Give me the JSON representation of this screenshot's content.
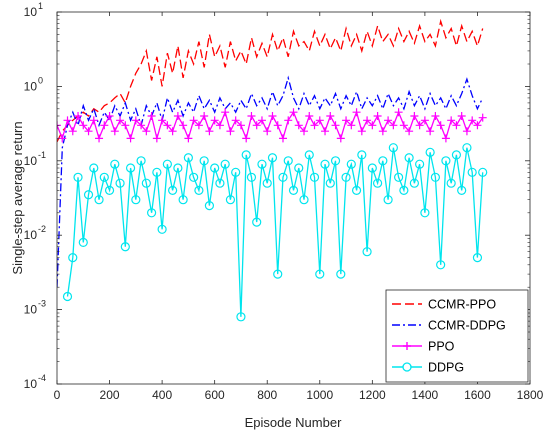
{
  "chart_data": {
    "type": "line",
    "title": "",
    "xlabel": "Episode Number",
    "ylabel": "Single-step average return",
    "xlim": [
      0,
      1800
    ],
    "ylim": [
      0.0001,
      10
    ],
    "y_scale": "log",
    "x_ticks": [
      "0",
      "200",
      "400",
      "600",
      "800",
      "1000",
      "1200",
      "1400",
      "1600",
      "1800"
    ],
    "y_ticks": [
      {
        "base": "10",
        "exp": "-4"
      },
      {
        "base": "10",
        "exp": "-3"
      },
      {
        "base": "10",
        "exp": "-2"
      },
      {
        "base": "10",
        "exp": "-1"
      },
      {
        "base": "10",
        "exp": "0"
      },
      {
        "base": "10",
        "exp": "1"
      }
    ],
    "grid": false,
    "legend_position": "bottom-right",
    "series": [
      {
        "name": "CCMR-PPO",
        "color": "#ff0000",
        "line_style": "dashed",
        "marker": "none",
        "x": [
          0,
          20,
          40,
          60,
          80,
          100,
          120,
          140,
          160,
          180,
          200,
          220,
          240,
          260,
          280,
          300,
          320,
          340,
          360,
          380,
          400,
          420,
          440,
          460,
          480,
          500,
          520,
          540,
          560,
          580,
          600,
          620,
          640,
          660,
          680,
          700,
          720,
          740,
          760,
          780,
          800,
          820,
          840,
          860,
          880,
          900,
          920,
          940,
          960,
          980,
          1000,
          1020,
          1040,
          1060,
          1080,
          1100,
          1120,
          1140,
          1160,
          1180,
          1200,
          1220,
          1240,
          1260,
          1280,
          1300,
          1320,
          1340,
          1360,
          1380,
          1400,
          1420,
          1440,
          1460,
          1480,
          1500,
          1520,
          1540,
          1560,
          1580,
          1600,
          1620
        ],
        "y": [
          0.18,
          0.25,
          0.3,
          0.35,
          0.4,
          0.45,
          0.4,
          0.5,
          0.45,
          0.55,
          0.6,
          0.7,
          0.8,
          0.6,
          1.0,
          1.5,
          2.0,
          3.0,
          1.2,
          2.5,
          1.0,
          2.8,
          1.5,
          3.5,
          1.3,
          3.0,
          2.0,
          4.0,
          1.8,
          5.0,
          2.5,
          3.5,
          1.8,
          4.0,
          2.2,
          3.0,
          2.0,
          4.5,
          2.5,
          3.8,
          2.5,
          5.0,
          3.0,
          4.5,
          2.5,
          5.5,
          3.5,
          4.0,
          3.0,
          5.5,
          3.5,
          5.0,
          3.2,
          4.5,
          3.0,
          6.0,
          3.5,
          5.0,
          3.0,
          5.5,
          3.5,
          6.5,
          4.0,
          5.0,
          3.5,
          6.0,
          4.0,
          5.5,
          3.8,
          6.5,
          4.0,
          5.0,
          3.5,
          7.5,
          4.5,
          6.0,
          3.5,
          6.5,
          4.0,
          5.5,
          3.5,
          6.0
        ]
      },
      {
        "name": "CCMR-DDPG",
        "color": "#0000ff",
        "line_style": "dashdot",
        "marker": "none",
        "x": [
          0,
          20,
          40,
          60,
          80,
          100,
          120,
          140,
          160,
          180,
          200,
          220,
          240,
          260,
          280,
          300,
          320,
          340,
          360,
          380,
          400,
          420,
          440,
          460,
          480,
          500,
          520,
          540,
          560,
          580,
          600,
          620,
          640,
          660,
          680,
          700,
          720,
          740,
          760,
          780,
          800,
          820,
          840,
          860,
          880,
          900,
          920,
          940,
          960,
          980,
          1000,
          1020,
          1040,
          1060,
          1080,
          1100,
          1120,
          1140,
          1160,
          1180,
          1200,
          1220,
          1240,
          1260,
          1280,
          1300,
          1320,
          1340,
          1360,
          1380,
          1400,
          1420,
          1440,
          1460,
          1480,
          1500,
          1520,
          1540,
          1560,
          1580,
          1600,
          1620
        ],
        "y": [
          0.002,
          0.15,
          0.3,
          0.45,
          0.3,
          0.55,
          0.35,
          0.5,
          0.3,
          0.45,
          0.35,
          0.55,
          0.4,
          0.6,
          0.35,
          0.5,
          0.3,
          0.55,
          0.4,
          0.6,
          0.35,
          0.7,
          0.45,
          0.65,
          0.4,
          0.6,
          0.45,
          0.75,
          0.5,
          0.65,
          0.45,
          0.7,
          0.5,
          0.6,
          0.45,
          0.65,
          0.5,
          0.8,
          0.55,
          0.7,
          0.5,
          0.85,
          0.55,
          0.75,
          1.3,
          0.7,
          0.5,
          0.8,
          0.55,
          0.75,
          0.5,
          0.7,
          0.55,
          0.8,
          0.5,
          0.75,
          0.55,
          0.85,
          0.5,
          0.7,
          0.55,
          0.75,
          0.5,
          0.8,
          0.55,
          0.7,
          0.5,
          0.85,
          0.55,
          0.75,
          0.5,
          0.8,
          0.55,
          0.7,
          0.5,
          0.75,
          0.55,
          0.8,
          1.25,
          0.75,
          0.5,
          0.7
        ]
      },
      {
        "name": "PPO",
        "color": "#ff00ff",
        "line_style": "solid",
        "marker": "plus",
        "x": [
          0,
          20,
          40,
          60,
          80,
          100,
          120,
          140,
          160,
          180,
          200,
          220,
          240,
          260,
          280,
          300,
          320,
          340,
          360,
          380,
          400,
          420,
          440,
          460,
          480,
          500,
          520,
          540,
          560,
          580,
          600,
          620,
          640,
          660,
          680,
          700,
          720,
          740,
          760,
          780,
          800,
          820,
          840,
          860,
          880,
          900,
          920,
          940,
          960,
          980,
          1000,
          1020,
          1040,
          1060,
          1080,
          1100,
          1120,
          1140,
          1160,
          1180,
          1200,
          1220,
          1240,
          1260,
          1280,
          1300,
          1320,
          1340,
          1360,
          1380,
          1400,
          1420,
          1440,
          1460,
          1480,
          1500,
          1520,
          1540,
          1560,
          1580,
          1600,
          1620
        ],
        "y": [
          0.3,
          0.2,
          0.35,
          0.25,
          0.4,
          0.3,
          0.25,
          0.35,
          0.2,
          0.3,
          0.4,
          0.25,
          0.35,
          0.3,
          0.2,
          0.35,
          0.3,
          0.25,
          0.4,
          0.2,
          0.35,
          0.3,
          0.25,
          0.4,
          0.3,
          0.2,
          0.35,
          0.3,
          0.4,
          0.25,
          0.35,
          0.3,
          0.45,
          0.25,
          0.35,
          0.3,
          0.2,
          0.4,
          0.3,
          0.35,
          0.25,
          0.4,
          0.3,
          0.2,
          0.35,
          0.45,
          0.3,
          0.25,
          0.4,
          0.3,
          0.35,
          0.25,
          0.4,
          0.3,
          0.2,
          0.35,
          0.3,
          0.45,
          0.25,
          0.35,
          0.3,
          0.4,
          0.25,
          0.35,
          0.3,
          0.45,
          0.3,
          0.25,
          0.4,
          0.3,
          0.35,
          0.25,
          0.4,
          0.3,
          0.2,
          0.35,
          0.3,
          0.4,
          0.25,
          0.35,
          0.3,
          0.38
        ]
      },
      {
        "name": "DDPG",
        "color": "#00e5ee",
        "line_style": "solid",
        "marker": "circle",
        "x": [
          40,
          60,
          80,
          100,
          120,
          140,
          160,
          180,
          200,
          220,
          240,
          260,
          280,
          300,
          320,
          340,
          360,
          380,
          400,
          420,
          440,
          460,
          480,
          500,
          520,
          540,
          560,
          580,
          600,
          620,
          640,
          660,
          680,
          700,
          720,
          740,
          760,
          780,
          800,
          820,
          840,
          860,
          880,
          900,
          920,
          940,
          960,
          980,
          1000,
          1020,
          1040,
          1060,
          1080,
          1100,
          1120,
          1140,
          1160,
          1180,
          1200,
          1220,
          1240,
          1260,
          1280,
          1300,
          1320,
          1340,
          1360,
          1380,
          1400,
          1420,
          1440,
          1460,
          1480,
          1500,
          1520,
          1540,
          1560,
          1580,
          1600,
          1620
        ],
        "y": [
          0.0015,
          0.005,
          0.06,
          0.008,
          0.035,
          0.08,
          0.03,
          0.06,
          0.04,
          0.09,
          0.05,
          0.007,
          0.08,
          0.03,
          0.1,
          0.05,
          0.02,
          0.07,
          0.012,
          0.09,
          0.04,
          0.08,
          0.03,
          0.11,
          0.06,
          0.04,
          0.1,
          0.025,
          0.08,
          0.05,
          0.09,
          0.03,
          0.07,
          0.0008,
          0.12,
          0.06,
          0.015,
          0.09,
          0.05,
          0.11,
          0.003,
          0.06,
          0.1,
          0.04,
          0.08,
          0.03,
          0.12,
          0.06,
          0.003,
          0.09,
          0.05,
          0.1,
          0.003,
          0.06,
          0.09,
          0.04,
          0.12,
          0.006,
          0.08,
          0.05,
          0.1,
          0.03,
          0.15,
          0.06,
          0.04,
          0.11,
          0.05,
          0.09,
          0.02,
          0.13,
          0.06,
          0.004,
          0.1,
          0.05,
          0.12,
          0.04,
          0.15,
          0.07,
          0.005,
          0.07
        ]
      }
    ]
  }
}
